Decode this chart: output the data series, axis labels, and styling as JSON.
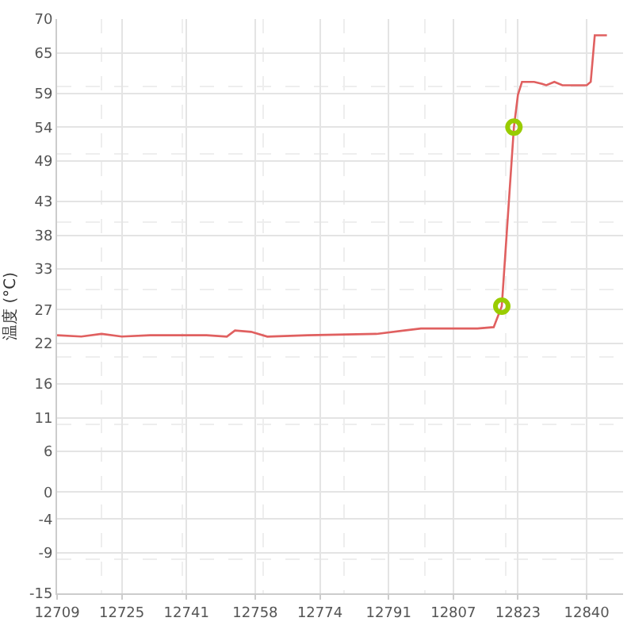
{
  "chart_data": {
    "type": "line",
    "ylabel": "温度 (°C)",
    "series": [
      {
        "color": "#e06060",
        "x": [
          12709,
          12715,
          12720,
          12725,
          12732,
          12738,
          12746,
          12751,
          12753,
          12757,
          12761,
          12771,
          12788,
          12799,
          12813,
          12817,
          12819,
          12822,
          12823,
          12824,
          12827,
          12829,
          12830,
          12832,
          12834,
          12840,
          12841,
          12842,
          12845
        ],
        "values": [
          23.2,
          23.0,
          23.4,
          23.0,
          23.2,
          23.2,
          23.2,
          23.0,
          23.9,
          23.7,
          23.0,
          23.2,
          23.4,
          24.2,
          24.2,
          24.4,
          27.5,
          54.0,
          58.8,
          60.7,
          60.7,
          60.4,
          60.2,
          60.7,
          60.2,
          60.2,
          60.7,
          67.6,
          67.6
        ]
      },
      {
        "type": "scatter",
        "color": "#99cc00",
        "marker": "circle",
        "x": [
          12819,
          12822
        ],
        "values": [
          27.5,
          54.0
        ]
      }
    ],
    "xlim": [
      12709,
      12849
    ],
    "xticks": [
      12709,
      12725,
      12741,
      12758,
      12774,
      12791,
      12807,
      12823,
      12840
    ],
    "ylim": [
      -15,
      70
    ],
    "yticks": [
      -15,
      -9,
      -4,
      0,
      6,
      11,
      16,
      22,
      27,
      33,
      38,
      43,
      49,
      54,
      59,
      65,
      70
    ],
    "grid": true
  }
}
